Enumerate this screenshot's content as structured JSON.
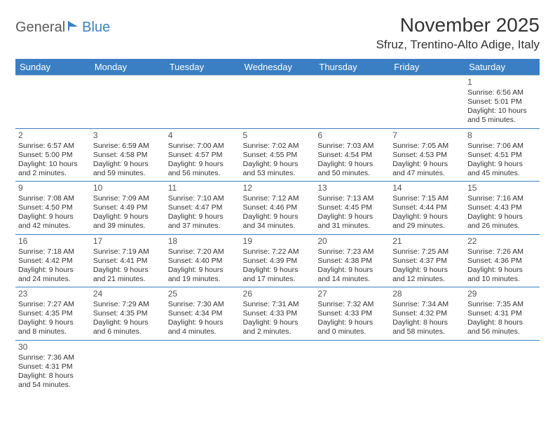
{
  "logo": {
    "part1": "General",
    "part2": "Blue"
  },
  "title": "November 2025",
  "location": "Sfruz, Trentino-Alto Adige, Italy",
  "colors": {
    "header_bg": "#3a7fc4",
    "header_fg": "#ffffff",
    "row_border": "#3a7fc4",
    "text": "#333333"
  },
  "day_headers": [
    "Sunday",
    "Monday",
    "Tuesday",
    "Wednesday",
    "Thursday",
    "Friday",
    "Saturday"
  ],
  "weeks": [
    [
      null,
      null,
      null,
      null,
      null,
      null,
      {
        "n": "1",
        "sunrise": "Sunrise: 6:56 AM",
        "sunset": "Sunset: 5:01 PM",
        "day1": "Daylight: 10 hours",
        "day2": "and 5 minutes."
      }
    ],
    [
      {
        "n": "2",
        "sunrise": "Sunrise: 6:57 AM",
        "sunset": "Sunset: 5:00 PM",
        "day1": "Daylight: 10 hours",
        "day2": "and 2 minutes."
      },
      {
        "n": "3",
        "sunrise": "Sunrise: 6:59 AM",
        "sunset": "Sunset: 4:58 PM",
        "day1": "Daylight: 9 hours",
        "day2": "and 59 minutes."
      },
      {
        "n": "4",
        "sunrise": "Sunrise: 7:00 AM",
        "sunset": "Sunset: 4:57 PM",
        "day1": "Daylight: 9 hours",
        "day2": "and 56 minutes."
      },
      {
        "n": "5",
        "sunrise": "Sunrise: 7:02 AM",
        "sunset": "Sunset: 4:55 PM",
        "day1": "Daylight: 9 hours",
        "day2": "and 53 minutes."
      },
      {
        "n": "6",
        "sunrise": "Sunrise: 7:03 AM",
        "sunset": "Sunset: 4:54 PM",
        "day1": "Daylight: 9 hours",
        "day2": "and 50 minutes."
      },
      {
        "n": "7",
        "sunrise": "Sunrise: 7:05 AM",
        "sunset": "Sunset: 4:53 PM",
        "day1": "Daylight: 9 hours",
        "day2": "and 47 minutes."
      },
      {
        "n": "8",
        "sunrise": "Sunrise: 7:06 AM",
        "sunset": "Sunset: 4:51 PM",
        "day1": "Daylight: 9 hours",
        "day2": "and 45 minutes."
      }
    ],
    [
      {
        "n": "9",
        "sunrise": "Sunrise: 7:08 AM",
        "sunset": "Sunset: 4:50 PM",
        "day1": "Daylight: 9 hours",
        "day2": "and 42 minutes."
      },
      {
        "n": "10",
        "sunrise": "Sunrise: 7:09 AM",
        "sunset": "Sunset: 4:49 PM",
        "day1": "Daylight: 9 hours",
        "day2": "and 39 minutes."
      },
      {
        "n": "11",
        "sunrise": "Sunrise: 7:10 AM",
        "sunset": "Sunset: 4:47 PM",
        "day1": "Daylight: 9 hours",
        "day2": "and 37 minutes."
      },
      {
        "n": "12",
        "sunrise": "Sunrise: 7:12 AM",
        "sunset": "Sunset: 4:46 PM",
        "day1": "Daylight: 9 hours",
        "day2": "and 34 minutes."
      },
      {
        "n": "13",
        "sunrise": "Sunrise: 7:13 AM",
        "sunset": "Sunset: 4:45 PM",
        "day1": "Daylight: 9 hours",
        "day2": "and 31 minutes."
      },
      {
        "n": "14",
        "sunrise": "Sunrise: 7:15 AM",
        "sunset": "Sunset: 4:44 PM",
        "day1": "Daylight: 9 hours",
        "day2": "and 29 minutes."
      },
      {
        "n": "15",
        "sunrise": "Sunrise: 7:16 AM",
        "sunset": "Sunset: 4:43 PM",
        "day1": "Daylight: 9 hours",
        "day2": "and 26 minutes."
      }
    ],
    [
      {
        "n": "16",
        "sunrise": "Sunrise: 7:18 AM",
        "sunset": "Sunset: 4:42 PM",
        "day1": "Daylight: 9 hours",
        "day2": "and 24 minutes."
      },
      {
        "n": "17",
        "sunrise": "Sunrise: 7:19 AM",
        "sunset": "Sunset: 4:41 PM",
        "day1": "Daylight: 9 hours",
        "day2": "and 21 minutes."
      },
      {
        "n": "18",
        "sunrise": "Sunrise: 7:20 AM",
        "sunset": "Sunset: 4:40 PM",
        "day1": "Daylight: 9 hours",
        "day2": "and 19 minutes."
      },
      {
        "n": "19",
        "sunrise": "Sunrise: 7:22 AM",
        "sunset": "Sunset: 4:39 PM",
        "day1": "Daylight: 9 hours",
        "day2": "and 17 minutes."
      },
      {
        "n": "20",
        "sunrise": "Sunrise: 7:23 AM",
        "sunset": "Sunset: 4:38 PM",
        "day1": "Daylight: 9 hours",
        "day2": "and 14 minutes."
      },
      {
        "n": "21",
        "sunrise": "Sunrise: 7:25 AM",
        "sunset": "Sunset: 4:37 PM",
        "day1": "Daylight: 9 hours",
        "day2": "and 12 minutes."
      },
      {
        "n": "22",
        "sunrise": "Sunrise: 7:26 AM",
        "sunset": "Sunset: 4:36 PM",
        "day1": "Daylight: 9 hours",
        "day2": "and 10 minutes."
      }
    ],
    [
      {
        "n": "23",
        "sunrise": "Sunrise: 7:27 AM",
        "sunset": "Sunset: 4:35 PM",
        "day1": "Daylight: 9 hours",
        "day2": "and 8 minutes."
      },
      {
        "n": "24",
        "sunrise": "Sunrise: 7:29 AM",
        "sunset": "Sunset: 4:35 PM",
        "day1": "Daylight: 9 hours",
        "day2": "and 6 minutes."
      },
      {
        "n": "25",
        "sunrise": "Sunrise: 7:30 AM",
        "sunset": "Sunset: 4:34 PM",
        "day1": "Daylight: 9 hours",
        "day2": "and 4 minutes."
      },
      {
        "n": "26",
        "sunrise": "Sunrise: 7:31 AM",
        "sunset": "Sunset: 4:33 PM",
        "day1": "Daylight: 9 hours",
        "day2": "and 2 minutes."
      },
      {
        "n": "27",
        "sunrise": "Sunrise: 7:32 AM",
        "sunset": "Sunset: 4:33 PM",
        "day1": "Daylight: 9 hours",
        "day2": "and 0 minutes."
      },
      {
        "n": "28",
        "sunrise": "Sunrise: 7:34 AM",
        "sunset": "Sunset: 4:32 PM",
        "day1": "Daylight: 8 hours",
        "day2": "and 58 minutes."
      },
      {
        "n": "29",
        "sunrise": "Sunrise: 7:35 AM",
        "sunset": "Sunset: 4:31 PM",
        "day1": "Daylight: 8 hours",
        "day2": "and 56 minutes."
      }
    ],
    [
      {
        "n": "30",
        "sunrise": "Sunrise: 7:36 AM",
        "sunset": "Sunset: 4:31 PM",
        "day1": "Daylight: 8 hours",
        "day2": "and 54 minutes."
      },
      null,
      null,
      null,
      null,
      null,
      null
    ]
  ]
}
